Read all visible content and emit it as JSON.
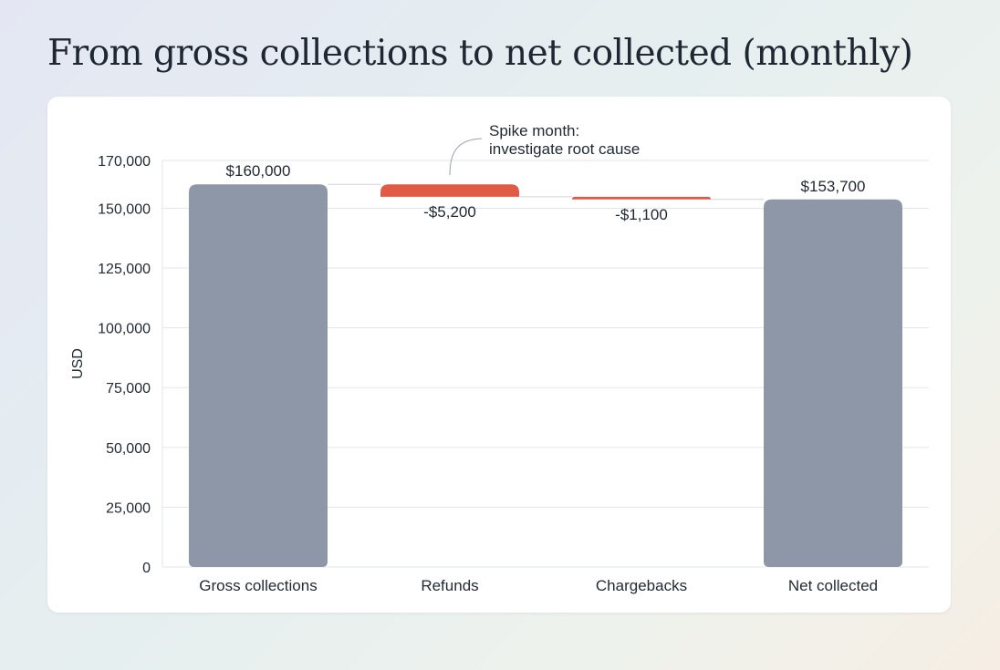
{
  "title": "From gross collections to net collected (monthly)",
  "chart_data": {
    "type": "bar",
    "subtype": "waterfall",
    "categories": [
      "Gross collections",
      "Refunds",
      "Chargebacks",
      "Net collected"
    ],
    "values": [
      160000,
      -5200,
      -1100,
      153700
    ],
    "measures": [
      "total",
      "relative",
      "relative",
      "total"
    ],
    "data_labels": [
      "$160,000",
      "-$5,200",
      "-$1,100",
      "$153,700"
    ],
    "ylabel": "USD",
    "xlabel": "",
    "ylim": [
      0,
      170000
    ],
    "yticks": [
      0,
      25000,
      50000,
      75000,
      100000,
      125000,
      150000,
      170000
    ],
    "ytick_labels": [
      "0",
      "25,000",
      "50,000",
      "75,000",
      "100,000",
      "125,000",
      "150,000",
      "170,000"
    ],
    "grid": true,
    "colors": {
      "total": "#8e97a7",
      "decrease": "#e05a45",
      "grid": "#e3e6ea",
      "connector": "#cfd4da"
    },
    "annotation": {
      "text_lines": [
        "Spike month:",
        "investigate root cause"
      ],
      "category_index": 1
    }
  }
}
